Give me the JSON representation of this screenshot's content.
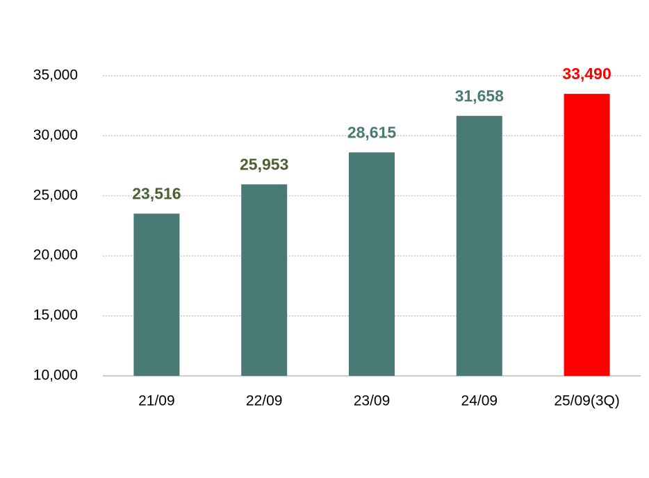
{
  "chart_data": {
    "type": "bar",
    "categories": [
      "21/09",
      "22/09",
      "23/09",
      "24/09",
      "25/09(3Q)"
    ],
    "values": [
      23516,
      25953,
      28615,
      31658,
      33490
    ],
    "value_labels": [
      "23,516",
      "25,953",
      "28,615",
      "31,658",
      "33,490"
    ],
    "colors": [
      "#4a7a76",
      "#4a7a76",
      "#4a7a76",
      "#4a7a76",
      "#ff0000"
    ],
    "value_label_colors": [
      "#4b6131",
      "#4b6131",
      "#4a7a76",
      "#4a7a76",
      "#ff0000"
    ],
    "ylim": [
      10000,
      35000
    ],
    "yticks": [
      {
        "value": 10000,
        "label": "10,000"
      },
      {
        "value": 15000,
        "label": "15,000"
      },
      {
        "value": 20000,
        "label": "20,000"
      },
      {
        "value": 25000,
        "label": "25,000"
      },
      {
        "value": 30000,
        "label": "30,000"
      },
      {
        "value": 35000,
        "label": "35,000"
      }
    ],
    "grid": true
  }
}
